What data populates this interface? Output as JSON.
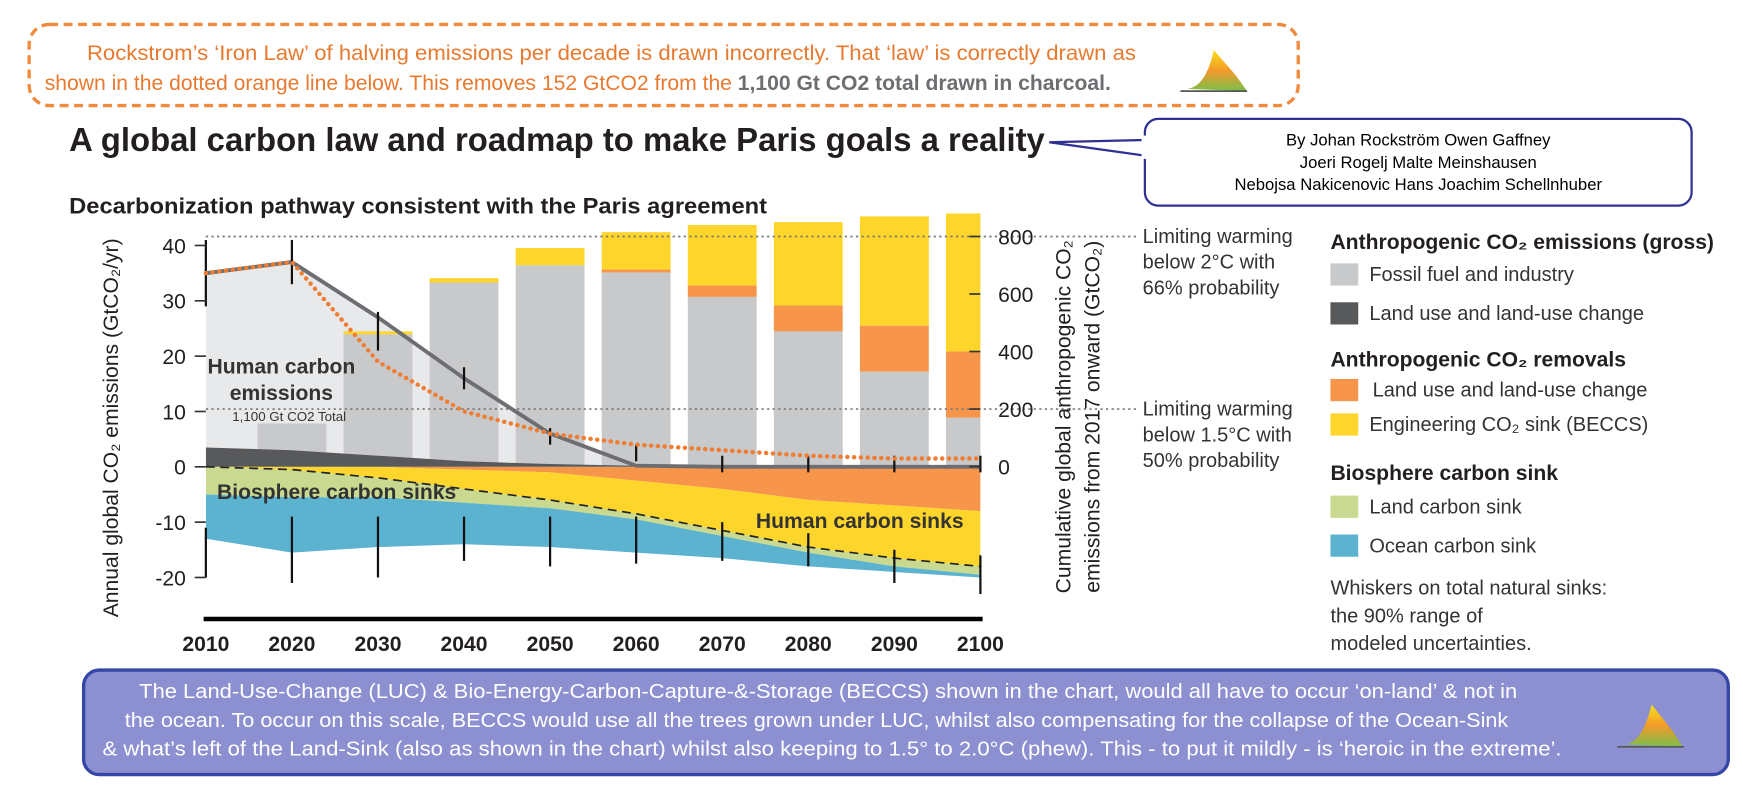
{
  "note_top": {
    "line1": "Rockstrom’s ‘Iron Law’ of halving emissions per decade is drawn incorrectly. That ‘law’ is correctly drawn as",
    "line2": "shown in the dotted orange line below. This removes 152 GtCO2 from the ",
    "line2_bold": "1,100 Gt CO2 total drawn in charcoal."
  },
  "title": "A global carbon law and roadmap to make Paris goals a reality",
  "authors": [
    "By Johan Rockström Owen Gaffney",
    "Joeri Rogelj Malte Meinshausen",
    "Nebojsa Nakicenovic Hans Joachim Schellnhuber"
  ],
  "note_bottom": [
    "The Land-Use-Change (LUC) & Bio-Energy-Carbon-Capture-&-Storage (BECCS) shown in the chart, would all have to occur ‘on-land’ & not in",
    "the ocean.  To occur on this scale, BECCS would use all the trees grown under LUC, whilst also compensating for the collapse of the Ocean-Sink",
    "& what’s left of the Land-Sink (also as shown in the chart) whilst also keeping to 1.5° to 2.0°C (phew). This - to put it mildly - is ‘heroic in the extreme’."
  ],
  "chart_data": {
    "type": "combo",
    "title": "Decarbonization pathway consistent with the Paris agreement",
    "x": [
      2010,
      2020,
      2030,
      2040,
      2050,
      2060,
      2070,
      2080,
      2090,
      2100
    ],
    "xlim": [
      2010,
      2100
    ],
    "xticks": [
      2010,
      2020,
      2030,
      2040,
      2050,
      2060,
      2070,
      2080,
      2090,
      2100
    ],
    "ylim": [
      -27.5,
      45
    ],
    "yticks": [
      -20,
      -10,
      0,
      10,
      20,
      30,
      40
    ],
    "y2lim": [
      -530,
      865
    ],
    "y2ticks": [
      0,
      200,
      400,
      600,
      800
    ],
    "ylabel": "Annual global CO₂ emissions (GtCO₂/yr)",
    "y2label": [
      "Cumulative global anthropogenic CO₂",
      "emissions from 2017 onward (GtCO₂)"
    ],
    "area_series": [
      {
        "name": "Land use and land-use change",
        "color": "#58595b",
        "values": [
          3.5,
          3,
          2,
          1,
          0.5,
          0.2,
          0,
          0,
          0,
          0
        ]
      },
      {
        "name": "Fossil fuel and industry",
        "color": "#e8e9ea",
        "values": [
          31.5,
          34,
          25,
          15,
          5.5,
          0,
          0,
          0,
          0,
          0
        ]
      },
      {
        "name": "Land use and land-use change",
        "color": "#f7964a",
        "values": [
          0,
          0,
          0,
          -0.5,
          -1,
          -2.5,
          -4,
          -6,
          -7,
          -8
        ]
      },
      {
        "name": "Engineering CO₂ sink (BECCS)",
        "color": "#fdd52b",
        "values": [
          0,
          -0.5,
          -2,
          -3.5,
          -5,
          -6,
          -7.5,
          -8.5,
          -9.5,
          -10
        ]
      },
      {
        "name": "Land carbon sink",
        "color": "#c9d98f",
        "values": [
          -5,
          -5,
          -3.5,
          -2.5,
          -1.5,
          -1,
          -1,
          -1,
          -1.5,
          -1.5
        ]
      },
      {
        "name": "Ocean carbon sink",
        "color": "#5bb3d0",
        "values": [
          -8,
          -10,
          -9,
          -7.5,
          -7,
          -6,
          -4,
          -2.5,
          -1,
          -0.5
        ]
      }
    ],
    "bar_series": [
      {
        "name": "Fossil fuel and industry",
        "color": "#c8c9cb",
        "axis": "y2",
        "values": [
          null,
          150,
          460,
          640,
          700,
          675,
          590,
          470,
          330,
          170
        ]
      },
      {
        "name": "Land use and land-use change",
        "color": "#f7964a",
        "axis": "y2",
        "values": [
          null,
          0,
          0,
          0,
          0,
          10,
          40,
          90,
          160,
          230
        ]
      },
      {
        "name": "Engineering CO₂ sink (BECCS)",
        "color": "#fdd52b",
        "axis": "y2",
        "values": [
          null,
          0,
          10,
          15,
          60,
          130,
          210,
          290,
          380,
          480
        ]
      }
    ],
    "line": {
      "color": "#f07d32",
      "values": [
        35,
        37,
        19,
        10,
        6,
        4,
        3,
        2,
        1.5,
        1.5
      ]
    },
    "gross_line_color": "#6d6e71",
    "whiskers": {
      "emissions": {
        "low": [
          29,
          33,
          21,
          14,
          4,
          1,
          -1,
          -1,
          -1,
          -1
        ],
        "high": [
          41,
          41,
          28,
          18,
          7,
          4,
          2,
          2,
          2,
          2
        ]
      },
      "sinks": {
        "low": [
          -20,
          -21,
          -20,
          -17,
          -18,
          -17.5,
          -17,
          -18,
          -21,
          -23
        ],
        "high": [
          -11,
          -9,
          -9,
          -9,
          -9,
          -9,
          -10,
          -12,
          -15,
          -16
        ]
      }
    },
    "references": [
      {
        "value": 800,
        "label": [
          "Limiting warming",
          "below 2°C with",
          "66% probability"
        ]
      },
      {
        "value": 200,
        "label": [
          "Limiting warming",
          "below 1.5°C with",
          "50% probability"
        ]
      }
    ],
    "labels": {
      "emissions": [
        "Human carbon",
        "emissions"
      ],
      "total": "1,100 Gt CO2 Total",
      "biosphere": "Biosphere carbon sinks",
      "human_sinks": "Human carbon sinks"
    },
    "legend": {
      "groups": [
        "Anthropogenic CO₂ emissions (gross)",
        "Anthropogenic CO₂ removals",
        "Biosphere carbon sink"
      ],
      "note": [
        "Whiskers on total natural sinks:",
        "the 90% range of",
        "modeled uncertainties."
      ]
    }
  }
}
